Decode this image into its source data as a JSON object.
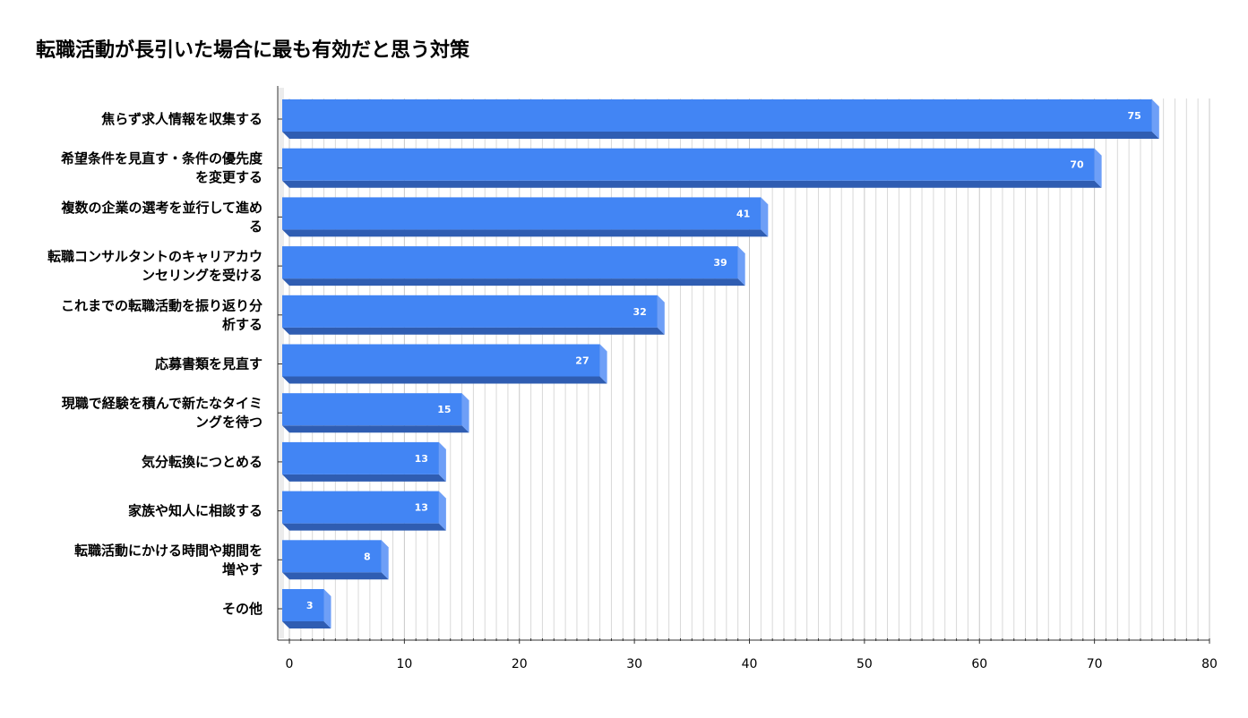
{
  "chart_data": {
    "type": "bar",
    "orientation": "horizontal",
    "style": "3d",
    "title": "転職活動が長引いた場合に最も有効だと思う対策",
    "categories": [
      [
        "焦らず求人情報を収集する"
      ],
      [
        "希望条件を見直す・条件の優先度",
        "を変更する"
      ],
      [
        "複数の企業の選考を並行して進め",
        "る"
      ],
      [
        "転職コンサルタントのキャリアカウ",
        "ンセリングを受ける"
      ],
      [
        "これまでの転職活動を振り返り分",
        "析する"
      ],
      [
        "応募書類を見直す"
      ],
      [
        "現職で経験を積んで新たなタイミ",
        "ングを待つ"
      ],
      [
        "気分転換につとめる"
      ],
      [
        "家族や知人に相談する"
      ],
      [
        "転職活動にかける時間や期間を",
        "増やす"
      ],
      [
        "その他"
      ]
    ],
    "values": [
      75,
      70,
      41,
      39,
      32,
      27,
      15,
      13,
      13,
      8,
      3
    ],
    "xlim": [
      0,
      80
    ],
    "xticks": [
      0,
      10,
      20,
      30,
      40,
      50,
      60,
      70,
      80
    ],
    "grid": true,
    "legend": "none",
    "colors": {
      "bar_front": "#4285f4",
      "bar_bottom": "#2f5db2",
      "bar_side": "#6e9ff7",
      "gridline": "#d9d9d9",
      "axis": "#333333"
    }
  }
}
